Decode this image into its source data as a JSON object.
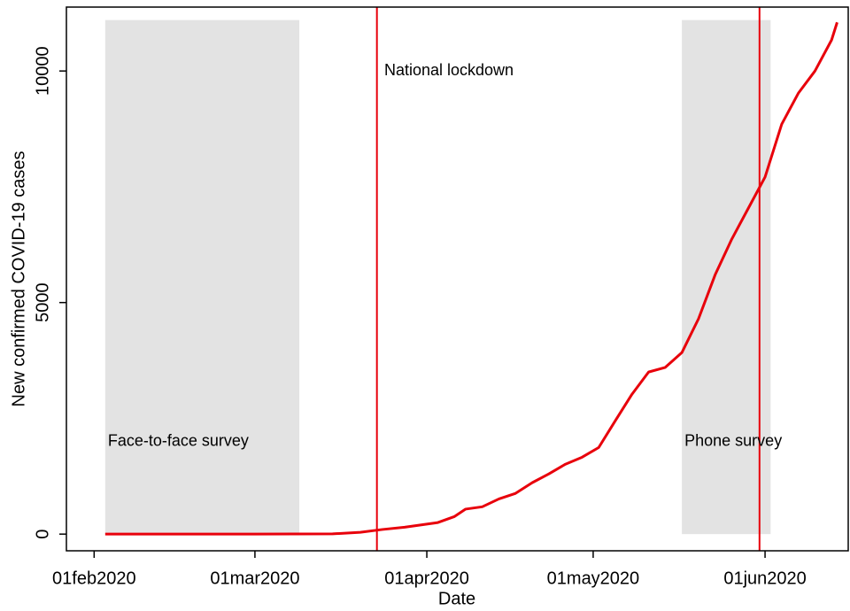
{
  "chart_data": {
    "type": "line",
    "x_label": "Date",
    "y_label": "New confirmed COVID-19 cases",
    "x": [
      "2020-02-03",
      "2020-03-01",
      "2020-03-15",
      "2020-03-20",
      "2020-03-24",
      "2020-03-28",
      "2020-04-03",
      "2020-04-06",
      "2020-04-08",
      "2020-04-11",
      "2020-04-14",
      "2020-04-17",
      "2020-04-20",
      "2020-04-23",
      "2020-04-26",
      "2020-04-29",
      "2020-05-02",
      "2020-05-05",
      "2020-05-08",
      "2020-05-11",
      "2020-05-14",
      "2020-05-17",
      "2020-05-20",
      "2020-05-23",
      "2020-05-26",
      "2020-05-29",
      "2020-06-01",
      "2020-06-04",
      "2020-06-07",
      "2020-06-10",
      "2020-06-13",
      "2020-06-14"
    ],
    "series": [
      {
        "color": "#e8000b",
        "values": [
          0,
          0,
          5,
          40,
          100,
          150,
          250,
          380,
          540,
          590,
          760,
          880,
          1110,
          1300,
          1510,
          1660,
          1870,
          2450,
          3020,
          3500,
          3600,
          3920,
          4650,
          5600,
          6370,
          7040,
          7710,
          8850,
          9520,
          10000,
          10670,
          11050
        ]
      }
    ],
    "xlim": [
      "2020-01-27",
      "2020-06-16"
    ],
    "xticks": [
      {
        "value": "2020-02-01",
        "label": "01feb2020"
      },
      {
        "value": "2020-03-01",
        "label": "01mar2020"
      },
      {
        "value": "2020-04-01",
        "label": "01apr2020"
      },
      {
        "value": "2020-05-01",
        "label": "01may2020"
      },
      {
        "value": "2020-06-01",
        "label": "01jun2020"
      }
    ],
    "ylim": [
      -360,
      11380
    ],
    "yticks": [
      0,
      5000,
      10000
    ],
    "bands": [
      {
        "label": "Face-to-face survey",
        "start": "2020-02-03",
        "end": "2020-03-09",
        "ymax": 11100,
        "color": "#e3e3e3"
      },
      {
        "label": "Phone survey",
        "start": "2020-05-17",
        "end": "2020-06-02",
        "ymax": 11100,
        "color": "#e3e3e3"
      }
    ],
    "band_label_y": 2000,
    "vlines": [
      {
        "x": "2020-03-23",
        "color": "#e8000b"
      },
      {
        "x": "2020-05-31",
        "color": "#e8000b"
      }
    ],
    "annotations": [
      {
        "text": "National lockdown",
        "x": "2020-03-24",
        "y": 10000,
        "color": "#e8000b"
      }
    ]
  }
}
